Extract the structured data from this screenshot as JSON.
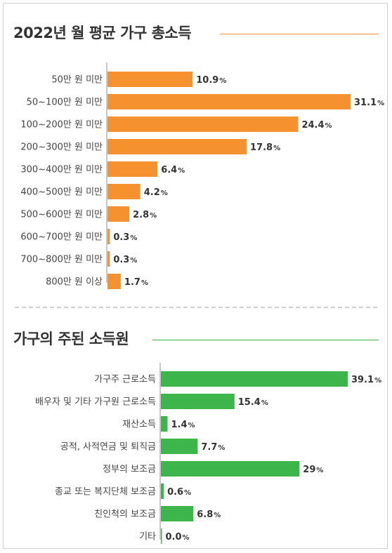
{
  "chart_data": [
    {
      "type": "bar",
      "orientation": "horizontal",
      "title": "2022년 월 평균 가구 총소득",
      "categories": [
        "50만 원 미만",
        "50~100만 원 미만",
        "100~200만 원 미만",
        "200~300만 원 미만",
        "300~400만 원 미만",
        "400~500만 원 미만",
        "500~600만 원 미만",
        "600~700만 원 미만",
        "700~800만 원 미만",
        "800만 원 이상"
      ],
      "values": [
        10.9,
        31.1,
        24.4,
        17.8,
        6.4,
        4.2,
        2.8,
        0.3,
        0.3,
        1.7
      ],
      "labels": [
        "10.9",
        "31.1",
        "24.4",
        "17.8",
        "6.4",
        "4.2",
        "2.8",
        "0.3",
        "0.3",
        "1.7"
      ],
      "unit": "%",
      "color": "#f5922f",
      "xlim": [
        0,
        31.1
      ]
    },
    {
      "type": "bar",
      "orientation": "horizontal",
      "title": "가구의 주된 소득원",
      "categories": [
        "가구주 근로소득",
        "배우자 및 기타 가구원 근로소득",
        "재산소득",
        "공적, 사적연금 및 퇴직금",
        "정부의 보조금",
        "종교 또는 복지단체 보조금",
        "친인척의 보조금",
        "기타"
      ],
      "values": [
        39.1,
        15.4,
        1.4,
        7.7,
        29,
        0.6,
        6.8,
        0.0
      ],
      "labels": [
        "39.1",
        "15.4",
        "1.4",
        "7.7",
        "29",
        "0.6",
        "6.8",
        "0.0"
      ],
      "unit": "%",
      "color": "#3cb54a",
      "xlim": [
        0,
        39.1
      ]
    }
  ],
  "colors": {
    "title_rule_1": "#f5922f",
    "title_rule_2": "#3cb54a",
    "axis": "#c8c8c8"
  }
}
